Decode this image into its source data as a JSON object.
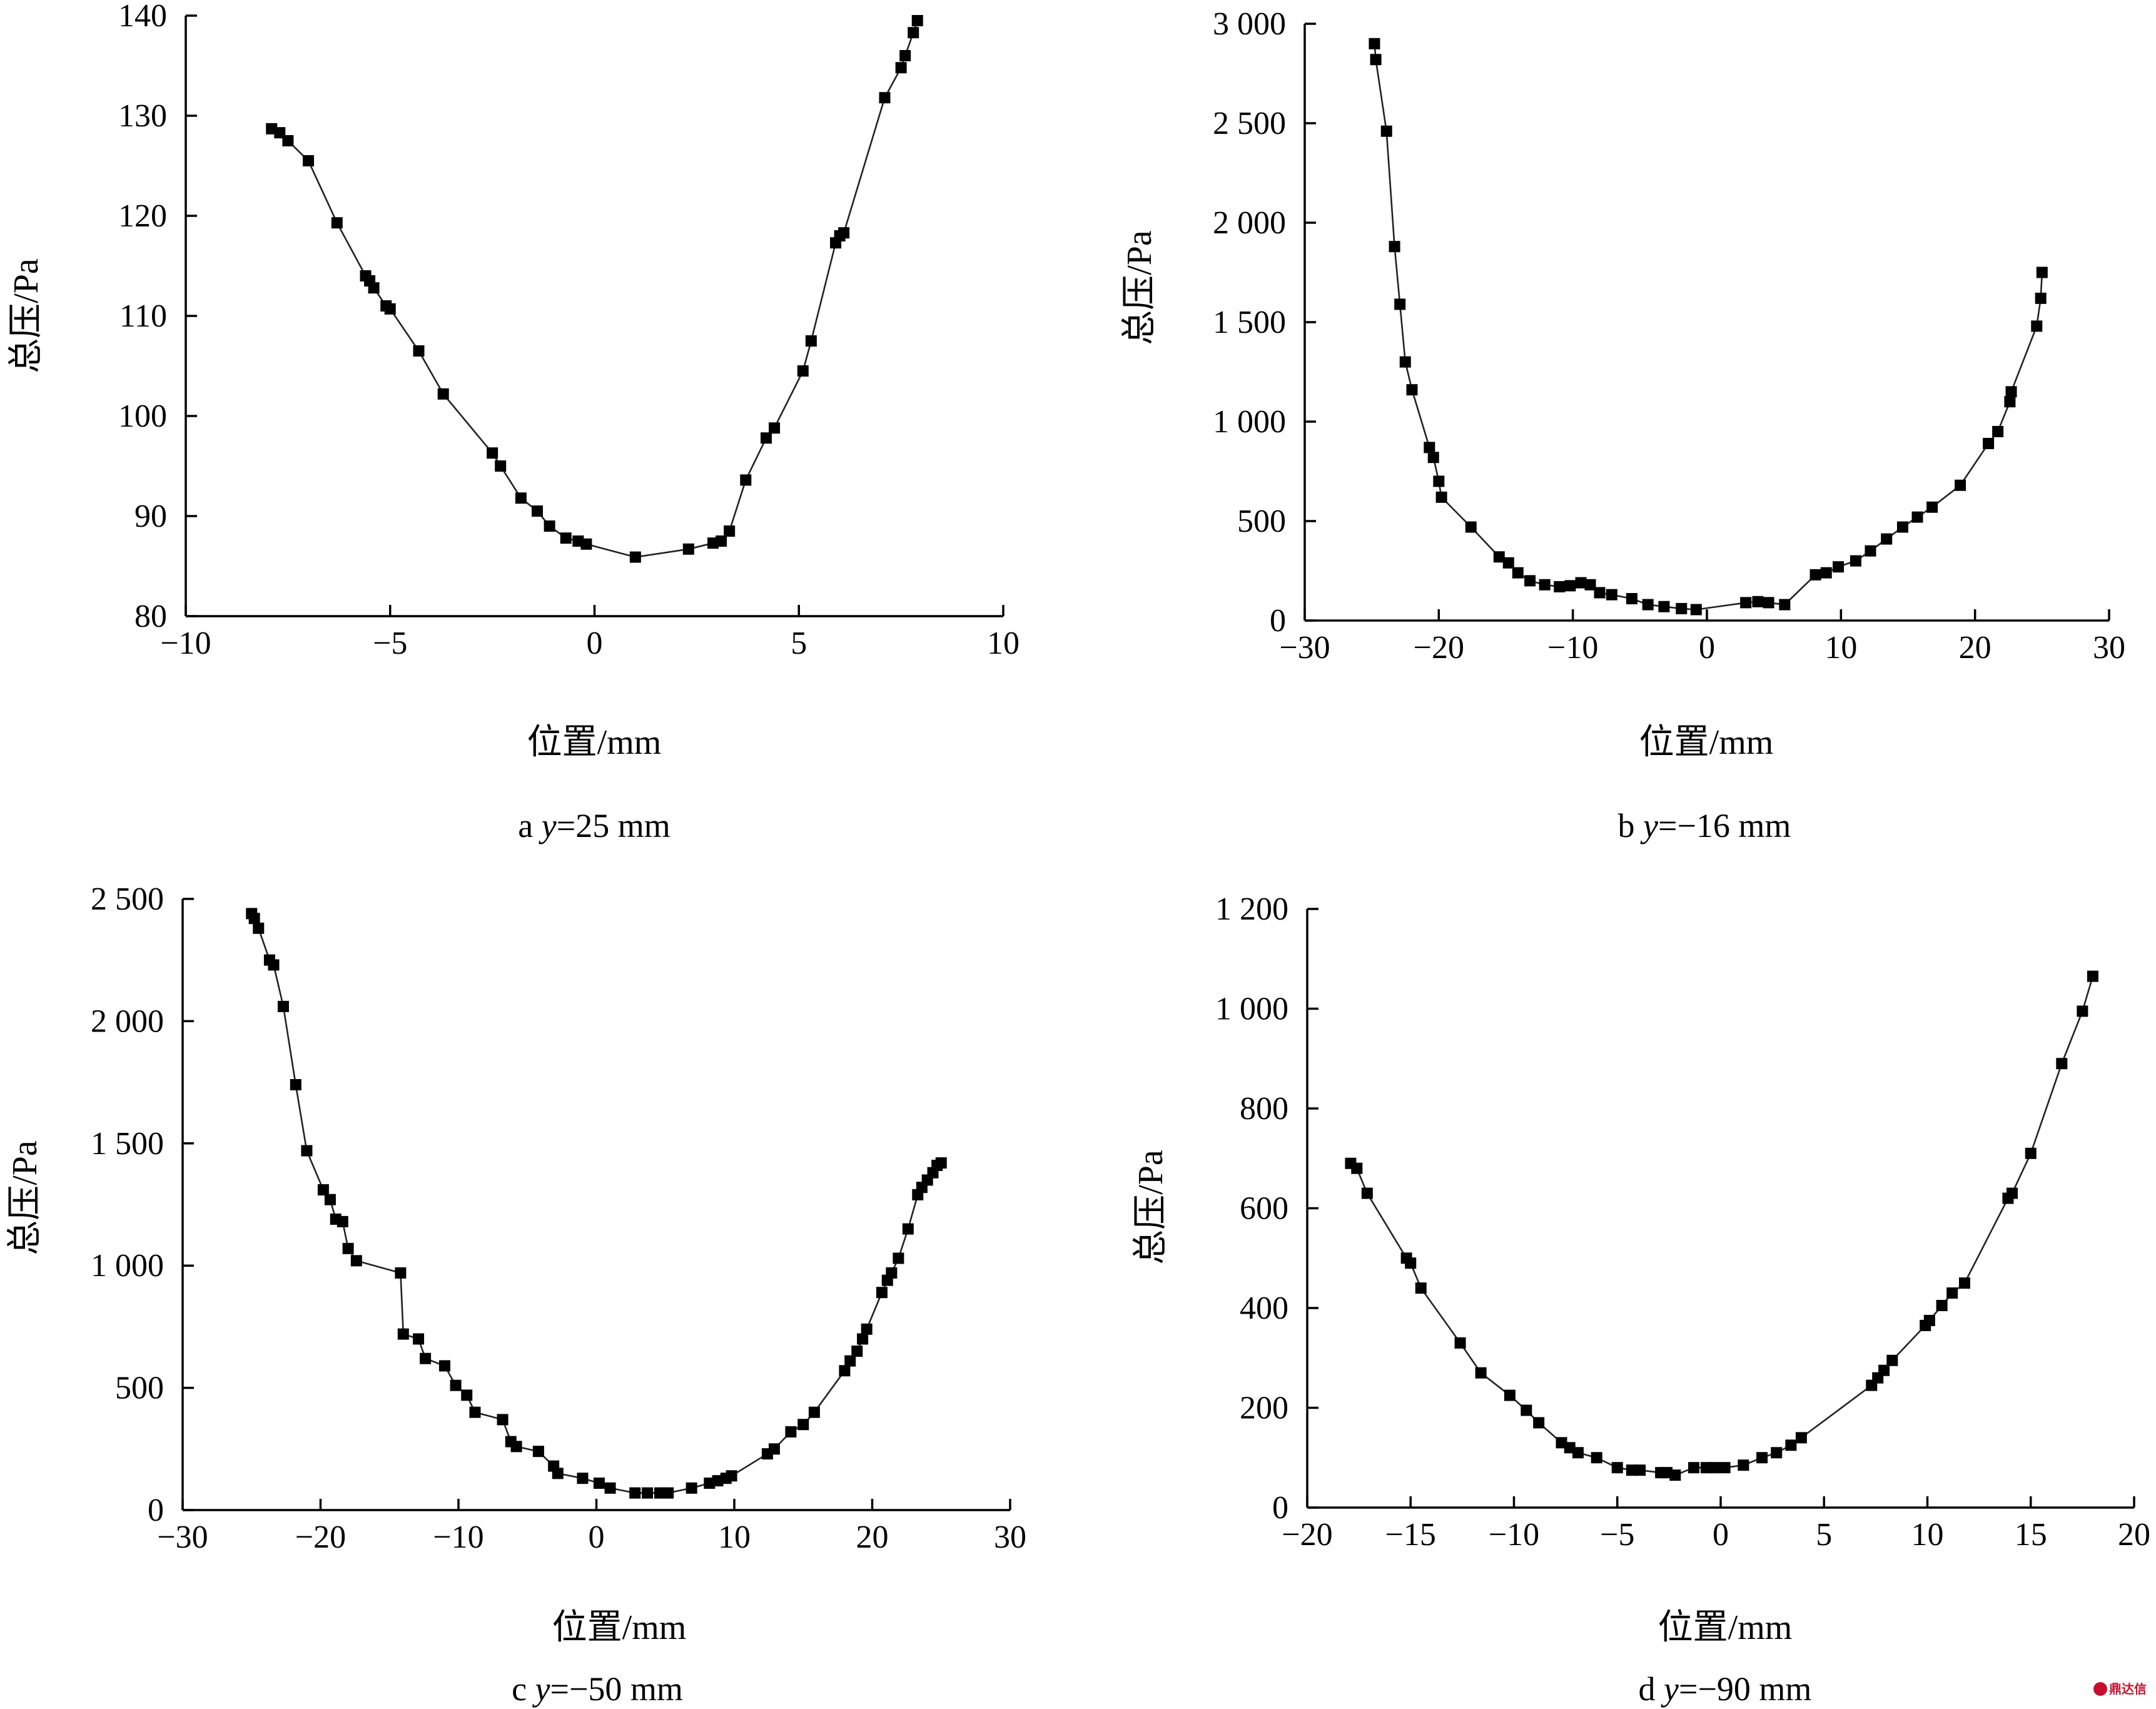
{
  "chart_data": [
    {
      "panel_id": "a",
      "type": "line",
      "caption_letter": "a",
      "caption_var": "y",
      "caption_value": "=25 mm",
      "xlabel": "位置/mm",
      "ylabel": "总压/Pa",
      "xlim": [
        -10,
        10
      ],
      "ylim": [
        80,
        140
      ],
      "xticks": [
        -10,
        -5,
        0,
        5,
        10
      ],
      "xtick_labels": [
        "−10",
        "−5",
        "0",
        "5",
        "10"
      ],
      "yticks": [
        80,
        90,
        100,
        110,
        120,
        130,
        140
      ],
      "ytick_labels": [
        "80",
        "90",
        "100",
        "110",
        "120",
        "130",
        "140"
      ],
      "marker": "square",
      "grid": false,
      "x": [
        -7.9,
        -7.7,
        -7.5,
        -7.0,
        -6.3,
        -5.6,
        -5.5,
        -5.4,
        -5.1,
        -5.0,
        -4.3,
        -3.7,
        -2.5,
        -2.3,
        -1.8,
        -1.4,
        -1.1,
        -0.7,
        -0.4,
        -0.2,
        1.0,
        2.3,
        2.9,
        3.1,
        3.3,
        3.7,
        4.2,
        4.4,
        5.1,
        5.3,
        5.9,
        6.0,
        6.1,
        7.1,
        7.5,
        7.6,
        7.8,
        7.9
      ],
      "y": [
        128.7,
        128.3,
        127.5,
        125.5,
        119.3,
        114.0,
        113.5,
        112.8,
        111.0,
        110.7,
        106.5,
        102.2,
        96.3,
        95.0,
        91.8,
        90.5,
        89.0,
        87.8,
        87.5,
        87.2,
        85.9,
        86.7,
        87.3,
        87.5,
        88.5,
        93.6,
        97.8,
        98.8,
        104.5,
        107.5,
        117.3,
        118.0,
        118.3,
        131.8,
        134.8,
        136.0,
        138.3,
        139.5
      ]
    },
    {
      "panel_id": "b",
      "type": "line",
      "caption_letter": "b",
      "caption_var": "y",
      "caption_value": "=−16 mm",
      "xlabel": "位置/mm",
      "ylabel": "总压/Pa",
      "xlim": [
        -30,
        30
      ],
      "ylim": [
        0,
        3000
      ],
      "xticks": [
        -30,
        -20,
        -10,
        0,
        10,
        20,
        30
      ],
      "xtick_labels": [
        "−30",
        "−20",
        "−10",
        "0",
        "10",
        "20",
        "30"
      ],
      "yticks": [
        0,
        500,
        1000,
        1500,
        2000,
        2500,
        3000
      ],
      "ytick_labels": [
        "0",
        "500",
        "1 000",
        "1 500",
        "2 000",
        "2 500",
        "3 000"
      ],
      "marker": "square",
      "grid": false,
      "x": [
        -24.8,
        -24.7,
        -23.9,
        -23.3,
        -22.9,
        -22.5,
        -22.0,
        -20.7,
        -20.4,
        -20.0,
        -19.8,
        -17.6,
        -15.5,
        -14.8,
        -14.1,
        -13.2,
        -12.1,
        -11.0,
        -10.2,
        -9.4,
        -8.7,
        -8.0,
        -7.1,
        -5.6,
        -4.4,
        -3.2,
        -1.9,
        -0.8,
        2.9,
        3.8,
        4.6,
        5.8,
        8.1,
        8.9,
        9.8,
        11.1,
        12.2,
        13.4,
        14.6,
        15.7,
        16.8,
        18.9,
        21.0,
        21.7,
        22.6,
        22.7,
        24.6,
        24.9,
        25.0
      ],
      "y": [
        2900,
        2820,
        2460,
        1880,
        1590,
        1300,
        1160,
        870,
        820,
        700,
        620,
        470,
        320,
        290,
        240,
        200,
        180,
        170,
        175,
        190,
        180,
        140,
        130,
        110,
        80,
        70,
        60,
        55,
        90,
        95,
        90,
        80,
        230,
        240,
        270,
        300,
        350,
        410,
        470,
        520,
        570,
        680,
        890,
        950,
        1100,
        1150,
        1480,
        1620,
        1750
      ]
    },
    {
      "panel_id": "c",
      "type": "line",
      "caption_letter": "c",
      "caption_var": "y",
      "caption_value": "=−50 mm",
      "xlabel": "位置/mm",
      "ylabel": "总压/Pa",
      "xlim": [
        -30,
        30
      ],
      "ylim": [
        0,
        2500
      ],
      "xticks": [
        -30,
        -20,
        -10,
        0,
        10,
        20,
        30
      ],
      "xtick_labels": [
        "−30",
        "−20",
        "−10",
        "0",
        "10",
        "20",
        "30"
      ],
      "yticks": [
        0,
        500,
        1000,
        1500,
        2000,
        2500
      ],
      "ytick_labels": [
        "0",
        "500",
        "1 000",
        "1 500",
        "2 000",
        "2 500"
      ],
      "marker": "square",
      "grid": false,
      "x": [
        -25.0,
        -24.8,
        -24.5,
        -23.7,
        -23.4,
        -22.7,
        -21.8,
        -21.0,
        -19.8,
        -19.3,
        -18.9,
        -18.4,
        -18.0,
        -17.4,
        -14.2,
        -14.0,
        -12.9,
        -12.4,
        -11.0,
        -10.2,
        -9.4,
        -8.8,
        -6.8,
        -6.2,
        -5.8,
        -4.2,
        -3.1,
        -2.8,
        -1.0,
        0.2,
        1.0,
        2.8,
        3.7,
        4.6,
        5.2,
        6.9,
        8.2,
        8.8,
        9.4,
        9.8,
        12.4,
        12.9,
        14.1,
        15.0,
        15.8,
        18.0,
        18.4,
        18.9,
        19.3,
        19.6,
        20.7,
        21.1,
        21.4,
        21.9,
        22.6,
        23.3,
        23.6,
        24.0,
        24.4,
        24.7,
        25.0
      ],
      "y": [
        2440,
        2420,
        2380,
        2250,
        2230,
        2060,
        1740,
        1470,
        1310,
        1270,
        1190,
        1180,
        1070,
        1020,
        970,
        720,
        700,
        620,
        590,
        510,
        470,
        400,
        370,
        280,
        260,
        240,
        180,
        150,
        130,
        110,
        90,
        70,
        70,
        70,
        70,
        90,
        110,
        120,
        130,
        140,
        230,
        250,
        320,
        350,
        400,
        570,
        610,
        650,
        700,
        740,
        890,
        940,
        970,
        1030,
        1150,
        1290,
        1320,
        1350,
        1380,
        1410,
        1420
      ]
    },
    {
      "panel_id": "d",
      "type": "line",
      "caption_letter": "d",
      "caption_var": "y",
      "caption_value": "=−90 mm",
      "xlabel": "位置/mm",
      "ylabel": "总压/Pa",
      "xlim": [
        -20,
        20
      ],
      "ylim": [
        0,
        1200
      ],
      "xticks": [
        -20,
        -15,
        -10,
        -5,
        0,
        5,
        10,
        15,
        20
      ],
      "xtick_labels": [
        "−20",
        "−15",
        "−10",
        "−5",
        "0",
        "5",
        "10",
        "15",
        "20"
      ],
      "yticks": [
        0,
        200,
        400,
        600,
        800,
        1000,
        1200
      ],
      "ytick_labels": [
        "0",
        "200",
        "400",
        "600",
        "800",
        "1 000",
        "1 200"
      ],
      "marker": "square",
      "grid": false,
      "x": [
        -17.9,
        -17.6,
        -17.1,
        -15.2,
        -15.0,
        -14.5,
        -12.6,
        -11.6,
        -10.2,
        -9.4,
        -8.8,
        -7.7,
        -7.3,
        -6.9,
        -6.0,
        -5.0,
        -4.3,
        -3.9,
        -2.9,
        -2.6,
        -2.2,
        -1.3,
        -0.7,
        -0.3,
        0.2,
        1.1,
        2.0,
        2.7,
        3.4,
        3.9,
        7.3,
        7.6,
        7.9,
        8.3,
        9.9,
        10.1,
        10.7,
        11.2,
        11.8,
        13.9,
        14.1,
        15.0,
        16.5,
        17.5,
        18.0
      ],
      "y": [
        690,
        680,
        630,
        500,
        490,
        440,
        330,
        270,
        225,
        195,
        170,
        130,
        120,
        110,
        100,
        80,
        75,
        75,
        70,
        70,
        65,
        80,
        80,
        80,
        80,
        85,
        100,
        110,
        125,
        140,
        245,
        260,
        275,
        295,
        365,
        375,
        405,
        430,
        450,
        620,
        630,
        710,
        890,
        995,
        1065
      ]
    }
  ],
  "watermark": {
    "text": "鼎达信",
    "color": "#c8102e"
  }
}
